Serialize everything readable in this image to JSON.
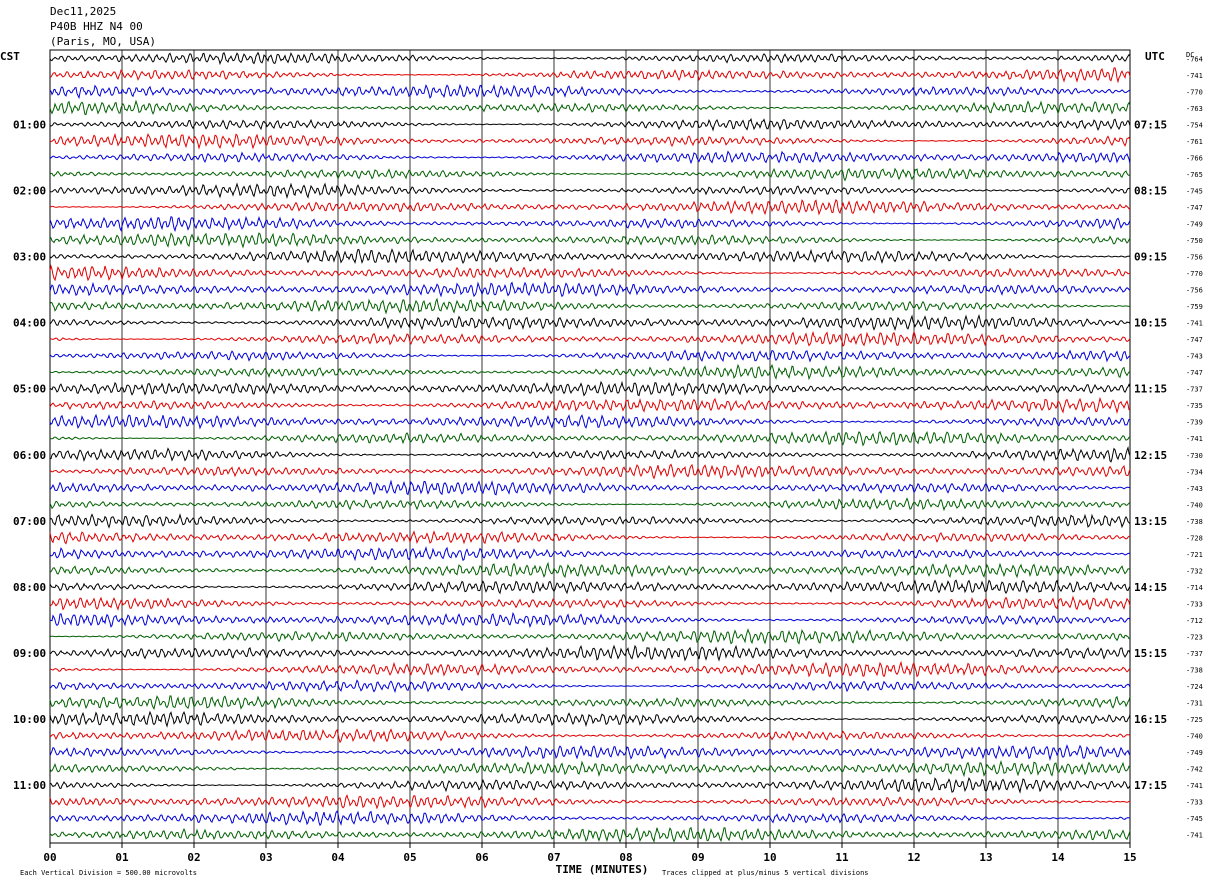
{
  "header": {
    "date": "Dec11,2025",
    "station": "P40B HHZ N4 00",
    "location": "(Paris, MO, USA)"
  },
  "labels": {
    "left_timezone": "CST",
    "right_timezone": "UTC",
    "dc_label": "DC"
  },
  "footer": {
    "scale_note": "Each Vertical Division =  500.00 microvolts",
    "clip_note": "Traces clipped at plus/minus 5 vertical divisions"
  },
  "colors": {
    "trace_cycle": [
      "#000000",
      "#e00000",
      "#0000d8",
      "#006000"
    ],
    "grid": "#000000",
    "background": "#ffffff"
  },
  "chart_data": {
    "type": "line",
    "title": "P40B HHZ N4 00",
    "xlabel": "TIME (MINUTES)",
    "x_ticks": [
      "00",
      "01",
      "02",
      "03",
      "04",
      "05",
      "06",
      "07",
      "08",
      "09",
      "10",
      "11",
      "12",
      "13",
      "14",
      "15"
    ],
    "xlim": [
      0,
      15
    ],
    "minutes_per_line": 15,
    "line_count": 48,
    "left_time_labels": [
      {
        "line": 4,
        "label": "01:00"
      },
      {
        "line": 8,
        "label": "02:00"
      },
      {
        "line": 12,
        "label": "03:00"
      },
      {
        "line": 16,
        "label": "04:00"
      },
      {
        "line": 20,
        "label": "05:00"
      },
      {
        "line": 24,
        "label": "06:00"
      },
      {
        "line": 28,
        "label": "07:00"
      },
      {
        "line": 32,
        "label": "08:00"
      },
      {
        "line": 36,
        "label": "09:00"
      },
      {
        "line": 40,
        "label": "10:00"
      },
      {
        "line": 44,
        "label": "11:00"
      }
    ],
    "right_time_labels": [
      {
        "line": 4,
        "label": "07:15"
      },
      {
        "line": 8,
        "label": "08:15"
      },
      {
        "line": 12,
        "label": "09:15"
      },
      {
        "line": 16,
        "label": "10:15"
      },
      {
        "line": 20,
        "label": "11:15"
      },
      {
        "line": 24,
        "label": "12:15"
      },
      {
        "line": 28,
        "label": "13:15"
      },
      {
        "line": 32,
        "label": "14:15"
      },
      {
        "line": 36,
        "label": "15:15"
      },
      {
        "line": 40,
        "label": "16:15"
      },
      {
        "line": 44,
        "label": "17:15"
      }
    ],
    "dc_offsets": [
      "-764",
      "-741",
      "-770",
      "-763",
      "-754",
      "-761",
      "-766",
      "-765",
      "-745",
      "-747",
      "-749",
      "-750",
      "-756",
      "-770",
      "-756",
      "-759",
      "-741",
      "-747",
      "-743",
      "-747",
      "-737",
      "-735",
      "-739",
      "-741",
      "-730",
      "-734",
      "-743",
      "-740",
      "-738",
      "-728",
      "-721",
      "-732",
      "-714",
      "-733",
      "-712",
      "-723",
      "-737",
      "-738",
      "-724",
      "-731",
      "-725",
      "-740",
      "-749",
      "-742",
      "-741",
      "-733",
      "-745",
      "-741"
    ],
    "units": "microvolts",
    "vertical_division_microvolts": 500.0,
    "clip_divisions": 5
  }
}
